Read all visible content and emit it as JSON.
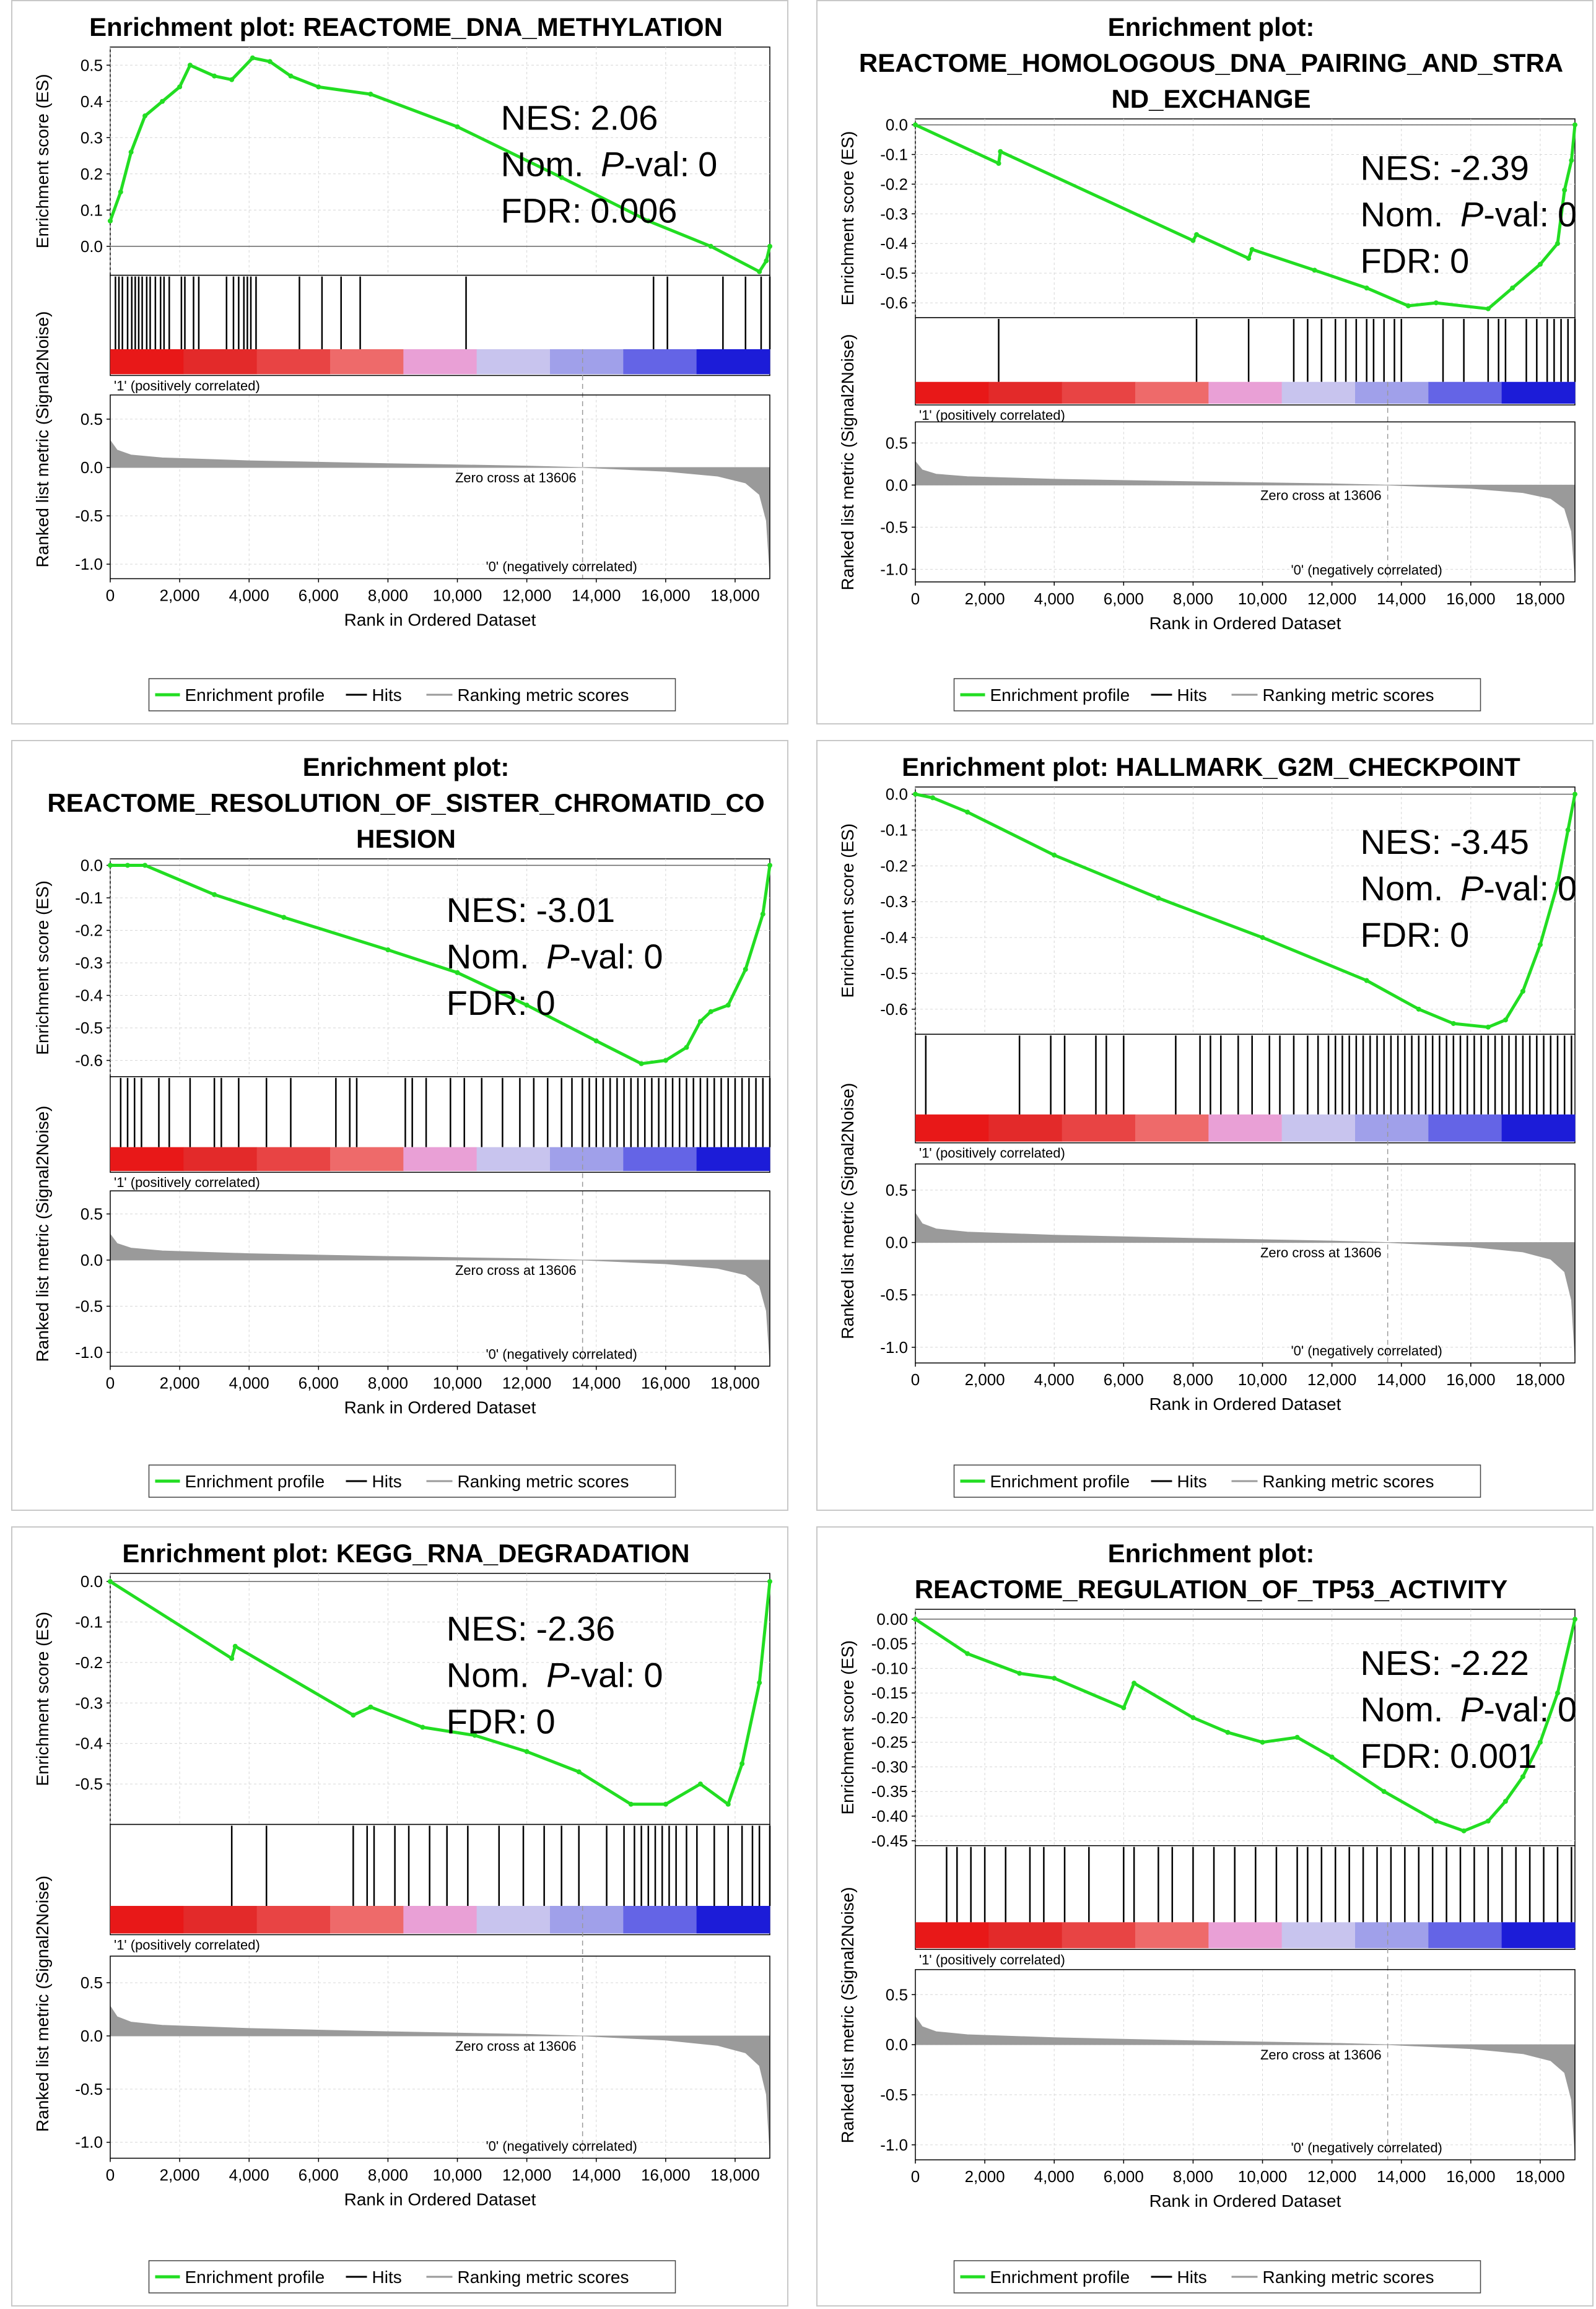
{
  "common": {
    "ylabel_es": "Enrichment score (ES)",
    "ylabel_metric": "Ranked list metric (Signal2Noise)",
    "xlabel": "Rank in Ordered Dataset",
    "pos_label": "'1' (positively correlated)",
    "neg_label": "'0' (negatively correlated)",
    "zero_cross": "Zero cross at 13606",
    "zero_cross_rank": 13606,
    "n_genes": 19000,
    "x_ticks": [
      0,
      2000,
      4000,
      6000,
      8000,
      10000,
      12000,
      14000,
      16000,
      18000
    ],
    "x_tick_labels": [
      "0",
      "2,000",
      "4,000",
      "6,000",
      "8,000",
      "10,000",
      "12,000",
      "14,000",
      "16,000",
      "18,000"
    ],
    "metric_ticks": [
      0.5,
      0.0,
      -0.5,
      -1.0
    ],
    "metric_tick_labels": [
      "0.5",
      "0.0",
      "-0.5",
      "-1.0"
    ],
    "metric_ylim": [
      -1.15,
      0.75
    ],
    "nes_label": "NES:",
    "pval_prefix": "Nom. ",
    "pval_p": "P",
    "pval_suffix": "-val:",
    "fdr_label": "FDR:",
    "legend": [
      "Enrichment profile",
      "Hits",
      "Ranking metric scores"
    ],
    "colors": {
      "es_line": "#22dd22",
      "hit": "#000000",
      "metric": "#9a9a9a",
      "pos_text": "#dd1111",
      "neg_text": "#1111cc",
      "grid": "#d6d6d6",
      "border": "#c8c8c8"
    },
    "heat_colors": [
      "#e81818",
      "#e32a2a",
      "#e84444",
      "#ee6a6a",
      "#e9a0d6",
      "#c8c4ee",
      "#a0a0ea",
      "#6464e6",
      "#1c1cd8"
    ]
  },
  "chart_data": [
    {
      "type": "line",
      "title": [
        "Enrichment plot: REACTOME_DNA_METHYLATION"
      ],
      "ylim": [
        -0.08,
        0.55
      ],
      "y_ticks": [
        0.0,
        0.1,
        0.2,
        0.3,
        0.4,
        0.5
      ],
      "y_tick_labels": [
        "0.0",
        "0.1",
        "0.2",
        "0.3",
        "0.4",
        "0.5"
      ],
      "es_points": [
        [
          0,
          0.07
        ],
        [
          300,
          0.15
        ],
        [
          600,
          0.26
        ],
        [
          1000,
          0.36
        ],
        [
          1500,
          0.4
        ],
        [
          2000,
          0.44
        ],
        [
          2300,
          0.5
        ],
        [
          3000,
          0.47
        ],
        [
          3500,
          0.46
        ],
        [
          4100,
          0.52
        ],
        [
          4600,
          0.51
        ],
        [
          5200,
          0.47
        ],
        [
          6000,
          0.44
        ],
        [
          7500,
          0.42
        ],
        [
          10000,
          0.33
        ],
        [
          13000,
          0.19
        ],
        [
          15500,
          0.07
        ],
        [
          17300,
          0.0
        ],
        [
          18700,
          -0.07
        ],
        [
          18900,
          -0.04
        ],
        [
          19000,
          0.0
        ]
      ],
      "nes": "2.06",
      "pval": "0",
      "fdr": "0.006",
      "hits": [
        150,
        250,
        350,
        500,
        620,
        720,
        820,
        920,
        1050,
        1150,
        1300,
        1450,
        1550,
        1700,
        2050,
        2150,
        2400,
        2550,
        3350,
        3550,
        3700,
        3850,
        3950,
        4050,
        4200,
        5450,
        6100,
        6650,
        7200,
        10250,
        15650,
        16050,
        17650,
        18300,
        18750,
        19000
      ]
    },
    {
      "type": "line",
      "title": [
        "Enrichment plot:",
        "REACTOME_HOMOLOGOUS_DNA_PAIRING_AND_STRA",
        "ND_EXCHANGE"
      ],
      "ylim": [
        -0.65,
        0.02
      ],
      "y_ticks": [
        0.0,
        -0.1,
        -0.2,
        -0.3,
        -0.4,
        -0.5,
        -0.6
      ],
      "y_tick_labels": [
        "0.0",
        "-0.1",
        "-0.2",
        "-0.3",
        "-0.4",
        "-0.5",
        "-0.6"
      ],
      "es_points": [
        [
          0,
          0.0
        ],
        [
          2400,
          -0.13
        ],
        [
          2450,
          -0.09
        ],
        [
          8000,
          -0.39
        ],
        [
          8100,
          -0.37
        ],
        [
          9600,
          -0.45
        ],
        [
          9700,
          -0.42
        ],
        [
          11500,
          -0.49
        ],
        [
          13000,
          -0.55
        ],
        [
          14200,
          -0.61
        ],
        [
          15000,
          -0.6
        ],
        [
          16500,
          -0.62
        ],
        [
          17200,
          -0.55
        ],
        [
          18000,
          -0.47
        ],
        [
          18500,
          -0.4
        ],
        [
          18700,
          -0.22
        ],
        [
          18900,
          -0.12
        ],
        [
          19000,
          0.0
        ]
      ],
      "nes": "-2.39",
      "pval": "0",
      "fdr": "0",
      "hits": [
        2400,
        8100,
        9600,
        10900,
        11300,
        11700,
        12100,
        12400,
        12700,
        13000,
        13200,
        13500,
        13800,
        14000,
        15200,
        15800,
        16500,
        16800,
        17000,
        17600,
        17900,
        18200,
        18400,
        18600,
        18800,
        19000
      ]
    },
    {
      "type": "line",
      "title": [
        "Enrichment plot:",
        "REACTOME_RESOLUTION_OF_SISTER_CHROMATID_CO",
        "HESION"
      ],
      "ylim": [
        -0.65,
        0.02
      ],
      "y_ticks": [
        0.0,
        -0.1,
        -0.2,
        -0.3,
        -0.4,
        -0.5,
        -0.6
      ],
      "y_tick_labels": [
        "0.0",
        "-0.1",
        "-0.2",
        "-0.3",
        "-0.4",
        "-0.5",
        "-0.6"
      ],
      "es_points": [
        [
          0,
          0.0
        ],
        [
          500,
          0.0
        ],
        [
          1000,
          0.0
        ],
        [
          3000,
          -0.09
        ],
        [
          5000,
          -0.16
        ],
        [
          8000,
          -0.26
        ],
        [
          10000,
          -0.33
        ],
        [
          12000,
          -0.43
        ],
        [
          14000,
          -0.54
        ],
        [
          15300,
          -0.61
        ],
        [
          16000,
          -0.6
        ],
        [
          16600,
          -0.56
        ],
        [
          17000,
          -0.48
        ],
        [
          17300,
          -0.45
        ],
        [
          17800,
          -0.43
        ],
        [
          18300,
          -0.32
        ],
        [
          18800,
          -0.15
        ],
        [
          19000,
          0.0
        ]
      ],
      "nes": "-3.01",
      "pval": "0",
      "fdr": "0",
      "hits": [
        300,
        500,
        700,
        900,
        1400,
        1700,
        2300,
        3000,
        3200,
        3700,
        4500,
        5200,
        6500,
        6900,
        7100,
        8500,
        8700,
        9100,
        9800,
        10200,
        10700,
        11300,
        11800,
        12200,
        12600,
        13000,
        13300,
        13600,
        13800,
        14000,
        14200,
        14400,
        14600,
        14800,
        15000,
        15200,
        15400,
        15600,
        15800,
        16000,
        16200,
        16400,
        16600,
        16800,
        17000,
        17200,
        17400,
        17600,
        17800,
        18000,
        18200,
        18400,
        18600,
        18800,
        19000
      ]
    },
    {
      "type": "line",
      "title": [
        "Enrichment plot: HALLMARK_G2M_CHECKPOINT"
      ],
      "ylim": [
        -0.67,
        0.02
      ],
      "y_ticks": [
        0.0,
        -0.1,
        -0.2,
        -0.3,
        -0.4,
        -0.5,
        -0.6
      ],
      "y_tick_labels": [
        "0.0",
        "-0.1",
        "-0.2",
        "-0.3",
        "-0.4",
        "-0.5",
        "-0.6"
      ],
      "es_points": [
        [
          0,
          0.0
        ],
        [
          500,
          -0.01
        ],
        [
          1500,
          -0.05
        ],
        [
          4000,
          -0.17
        ],
        [
          7000,
          -0.29
        ],
        [
          10000,
          -0.4
        ],
        [
          13000,
          -0.52
        ],
        [
          14500,
          -0.6
        ],
        [
          15500,
          -0.64
        ],
        [
          16500,
          -0.65
        ],
        [
          17000,
          -0.63
        ],
        [
          17500,
          -0.55
        ],
        [
          18000,
          -0.42
        ],
        [
          18500,
          -0.25
        ],
        [
          18800,
          -0.1
        ],
        [
          19000,
          0.0
        ]
      ],
      "nes": "-3.45",
      "pval": "0",
      "fdr": "0",
      "hits": [
        300,
        3000,
        3900,
        4300,
        5200,
        5500,
        6000,
        7500,
        8200,
        8500,
        8800,
        9300,
        9700,
        10200,
        10500,
        10900,
        11300,
        11600,
        11900,
        12100,
        12300,
        12500,
        12700,
        12900,
        13100,
        13300,
        13500,
        13700,
        13900,
        14100,
        14300,
        14500,
        14700,
        14900,
        15100,
        15300,
        15500,
        15700,
        15900,
        16100,
        16300,
        16500,
        16700,
        16900,
        17100,
        17300,
        17500,
        17700,
        17900,
        18100,
        18300,
        18500,
        18700,
        18900
      ]
    },
    {
      "type": "line",
      "title": [
        "Enrichment plot: KEGG_RNA_DEGRADATION"
      ],
      "ylim": [
        -0.6,
        0.02
      ],
      "y_ticks": [
        0.0,
        -0.1,
        -0.2,
        -0.3,
        -0.4,
        -0.5
      ],
      "y_tick_labels": [
        "0.0",
        "-0.1",
        "-0.2",
        "-0.3",
        "-0.4",
        "-0.5"
      ],
      "es_points": [
        [
          0,
          0.0
        ],
        [
          3500,
          -0.19
        ],
        [
          3600,
          -0.16
        ],
        [
          7000,
          -0.33
        ],
        [
          7500,
          -0.31
        ],
        [
          9000,
          -0.36
        ],
        [
          10500,
          -0.38
        ],
        [
          12000,
          -0.42
        ],
        [
          13500,
          -0.47
        ],
        [
          15000,
          -0.55
        ],
        [
          16000,
          -0.55
        ],
        [
          17000,
          -0.5
        ],
        [
          17800,
          -0.55
        ],
        [
          18200,
          -0.45
        ],
        [
          18700,
          -0.25
        ],
        [
          19000,
          0.0
        ]
      ],
      "nes": "-2.36",
      "pval": "0",
      "fdr": "0",
      "hits": [
        3500,
        4500,
        7000,
        7400,
        7600,
        8200,
        8600,
        9200,
        9700,
        10300,
        11200,
        11900,
        12500,
        13000,
        13500,
        14300,
        14800,
        15100,
        15300,
        15500,
        15700,
        15900,
        16100,
        16300,
        16600,
        16900,
        17400,
        17800,
        18200,
        18500,
        18700,
        19000
      ]
    },
    {
      "type": "line",
      "title": [
        "Enrichment plot:",
        "REACTOME_REGULATION_OF_TP53_ACTIVITY"
      ],
      "ylim": [
        -0.46,
        0.02
      ],
      "y_ticks": [
        0.0,
        -0.05,
        -0.1,
        -0.15,
        -0.2,
        -0.25,
        -0.3,
        -0.35,
        -0.4,
        -0.45
      ],
      "y_tick_labels": [
        "0.00",
        "-0.05",
        "-0.10",
        "-0.15",
        "-0.20",
        "-0.25",
        "-0.30",
        "-0.35",
        "-0.40",
        "-0.45"
      ],
      "es_points": [
        [
          0,
          0.0
        ],
        [
          1500,
          -0.07
        ],
        [
          3000,
          -0.11
        ],
        [
          4000,
          -0.12
        ],
        [
          6000,
          -0.18
        ],
        [
          6300,
          -0.13
        ],
        [
          8000,
          -0.2
        ],
        [
          9000,
          -0.23
        ],
        [
          10000,
          -0.25
        ],
        [
          11000,
          -0.24
        ],
        [
          12000,
          -0.28
        ],
        [
          13500,
          -0.35
        ],
        [
          15000,
          -0.41
        ],
        [
          15800,
          -0.43
        ],
        [
          16500,
          -0.41
        ],
        [
          17000,
          -0.37
        ],
        [
          17500,
          -0.32
        ],
        [
          18000,
          -0.25
        ],
        [
          18500,
          -0.15
        ],
        [
          19000,
          0.0
        ]
      ],
      "nes": "-2.22",
      "pval": "0",
      "fdr": "0.001",
      "hits": [
        900,
        1200,
        1600,
        2000,
        2600,
        3300,
        3700,
        4300,
        5000,
        6000,
        6300,
        7000,
        7400,
        8000,
        8600,
        9200,
        9800,
        10400,
        11000,
        11300,
        11700,
        12100,
        12500,
        12900,
        13300,
        13700,
        14100,
        14500,
        14900,
        15300,
        15700,
        16100,
        16500,
        16900,
        17300,
        17700,
        18100,
        18500,
        18900
      ]
    }
  ]
}
